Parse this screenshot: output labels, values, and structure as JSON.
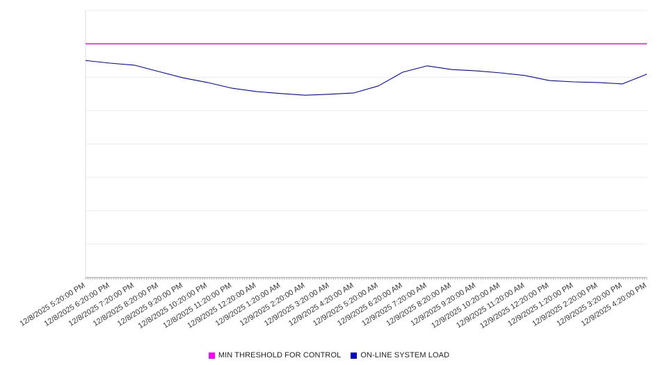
{
  "chart_data": {
    "type": "line",
    "title": "",
    "xlabel": "",
    "ylabel": "",
    "y_axis": "unlabeled (estimated in horizontal-gridline units)",
    "ylim": [
      0,
      8
    ],
    "gridlines": "horizontal",
    "legend_position": "bottom",
    "x_labels": [
      "12/8/2025 5:20:00 PM",
      "12/8/2025 6:20:00 PM",
      "12/8/2025 7:20:00 PM",
      "12/8/2025 8:20:00 PM",
      "12/8/2025 9:20:00 PM",
      "12/8/2025 10:20:00 PM",
      "12/8/2025 11:20:00 PM",
      "12/9/2025 12:20:00 AM",
      "12/9/2025 1:20:00 AM",
      "12/9/2025 2:20:00 AM",
      "12/9/2025 3:20:00 AM",
      "12/9/2025 4:20:00 AM",
      "12/9/2025 5:20:00 AM",
      "12/9/2025 6:20:00 AM",
      "12/9/2025 7:20:00 AM",
      "12/9/2025 8:20:00 AM",
      "12/9/2025 9:20:00 AM",
      "12/9/2025 10:20:00 AM",
      "12/9/2025 11:20:00 AM",
      "12/9/2025 12:20:00 PM",
      "12/9/2025 1:20:00 PM",
      "12/9/2025 2:20:00 PM",
      "12/9/2025 3:20:00 PM",
      "12/9/2025 4:20:00 PM"
    ],
    "series": [
      {
        "name": "MIN THRESHOLD FOR CONTROL",
        "color": "#ff00ff",
        "style": "constant-horizontal-line",
        "constant_value": 7.0
      },
      {
        "name": "ON-LINE SYSTEM LOAD",
        "color": "#0000cc",
        "style": "line",
        "values": [
          6.5,
          6.42,
          6.36,
          6.17,
          5.98,
          5.84,
          5.67,
          5.57,
          5.51,
          5.46,
          5.49,
          5.53,
          5.74,
          6.15,
          6.34,
          6.23,
          6.19,
          6.13,
          6.05,
          5.9,
          5.86,
          5.84,
          5.8,
          6.09
        ]
      }
    ]
  }
}
